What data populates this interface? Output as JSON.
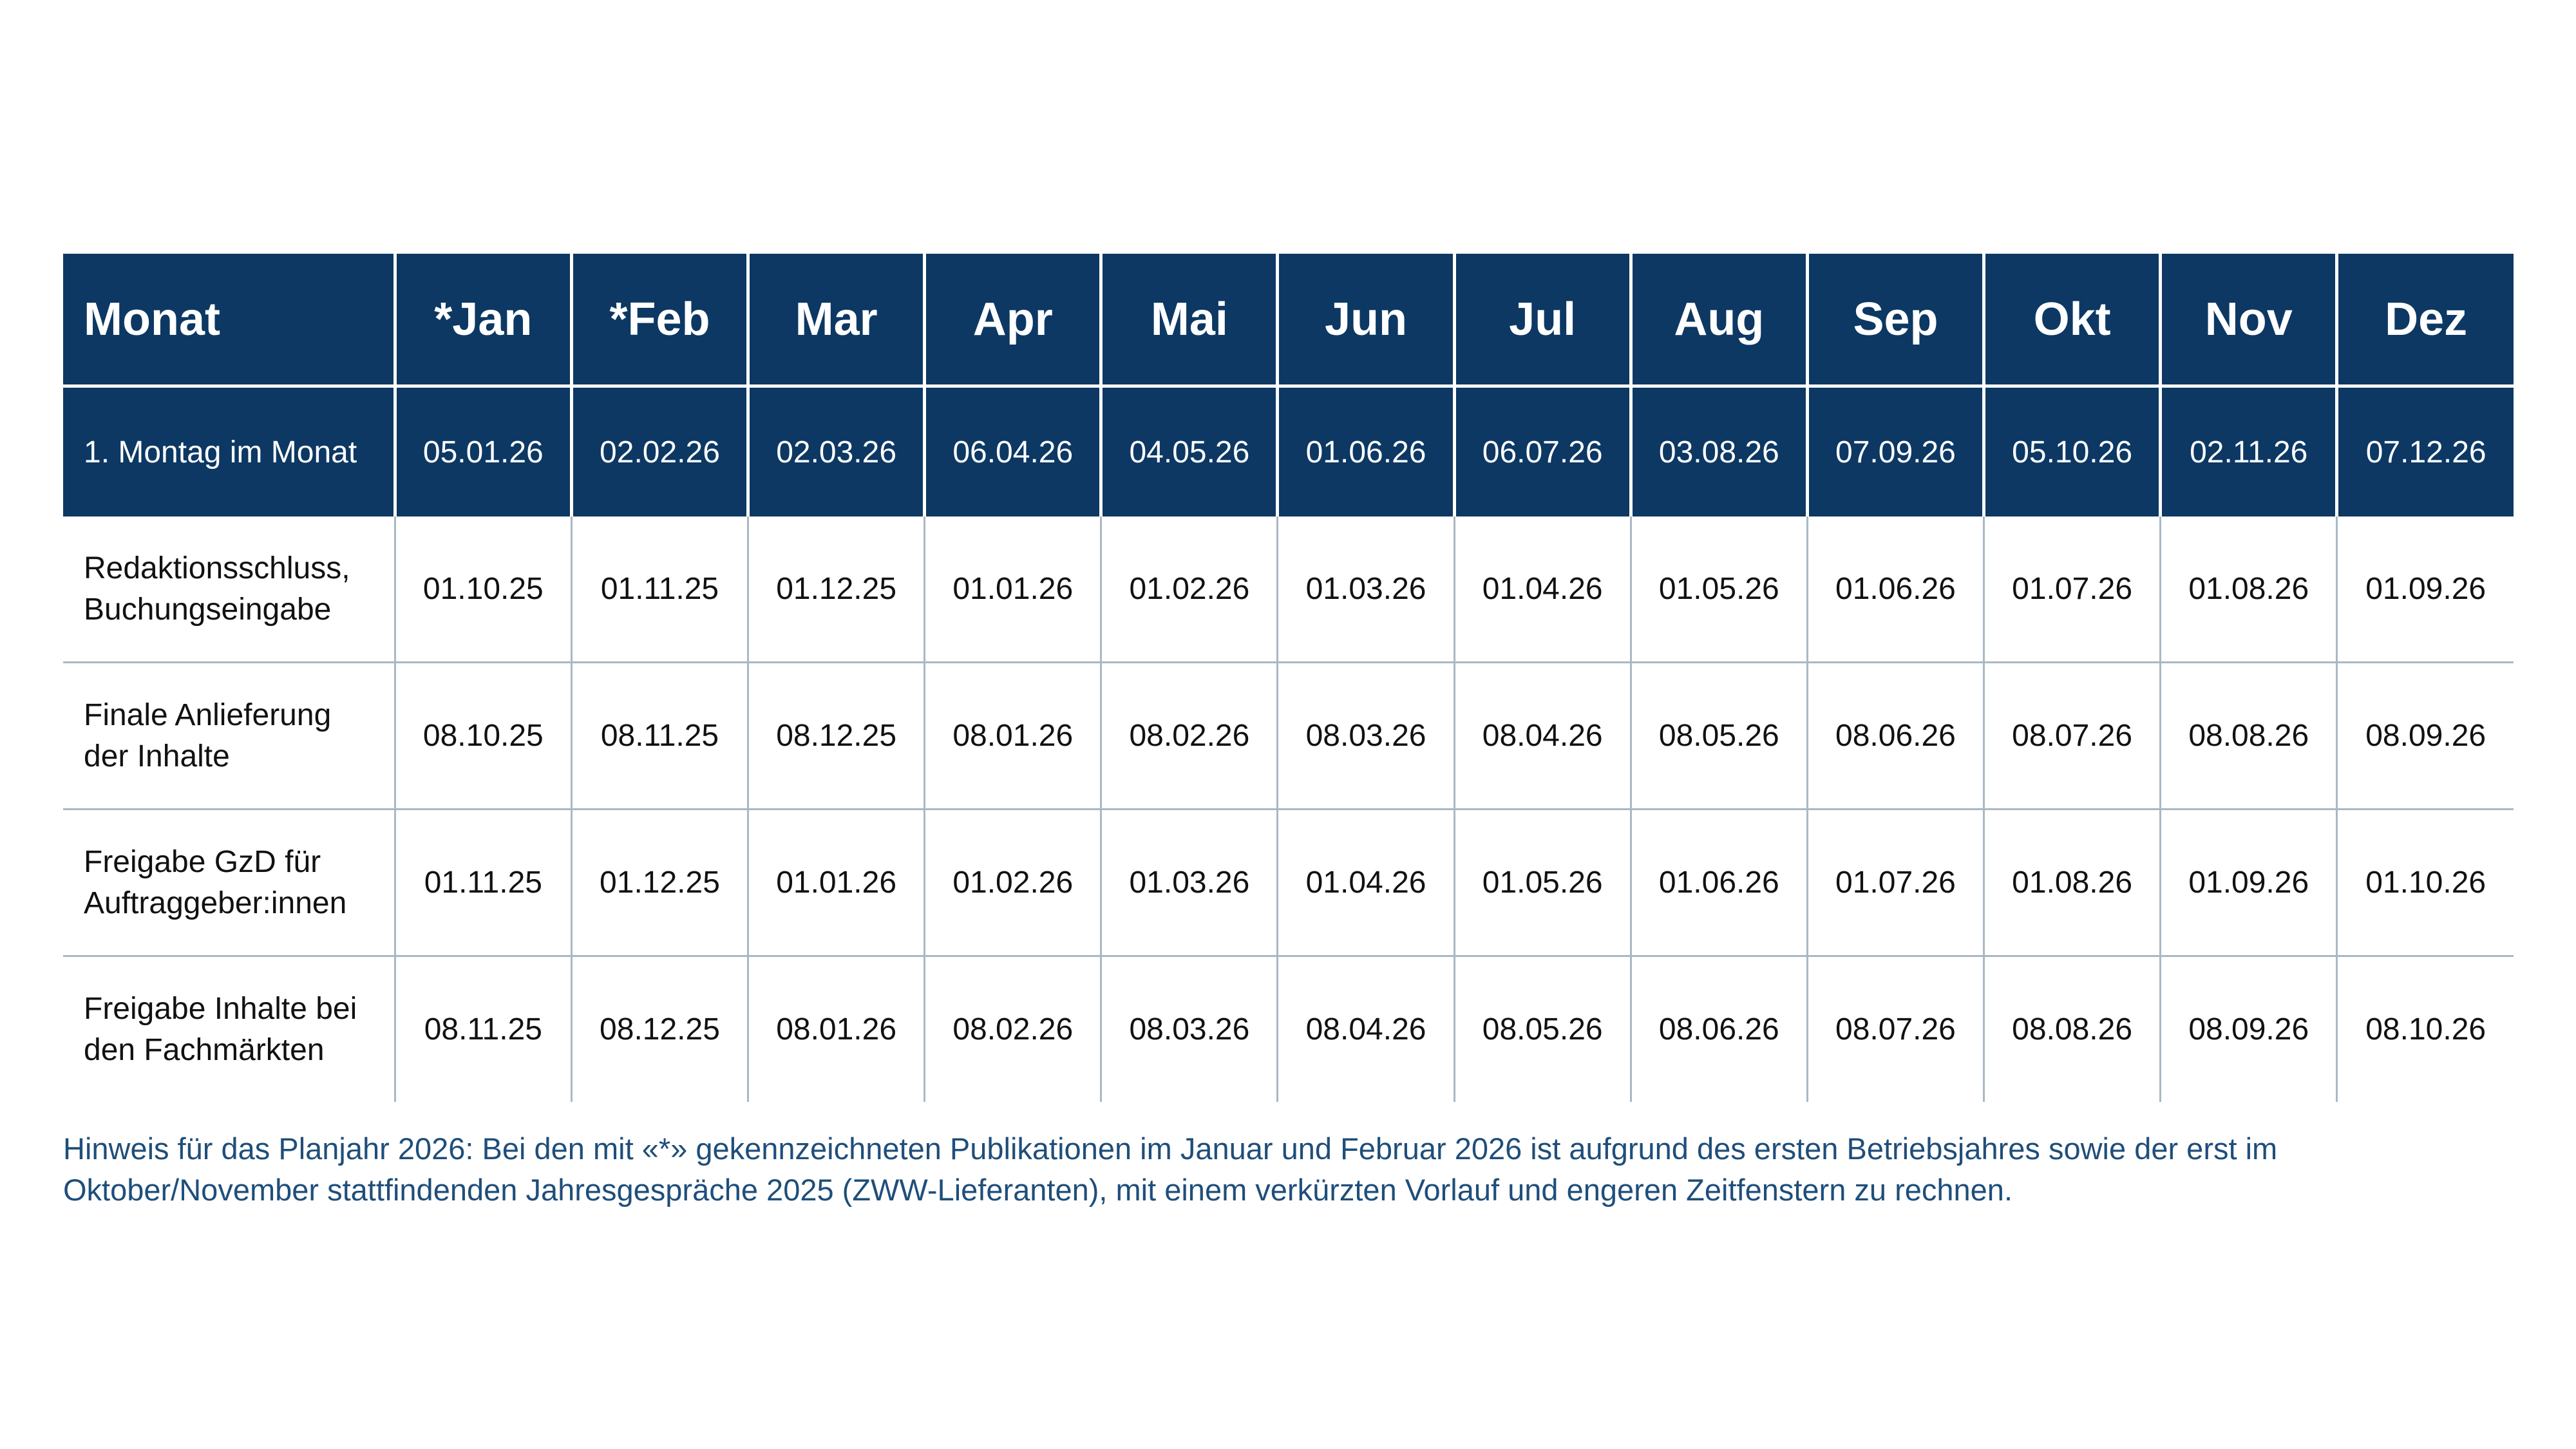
{
  "colors": {
    "header_bg": "#0c3863",
    "header_text": "#ffffff",
    "grid_line": "#a9b8c3",
    "note_text": "#1f4e7a"
  },
  "table": {
    "header": {
      "label": "Monat",
      "months": [
        "*Jan",
        "*Feb",
        "Mar",
        "Apr",
        "Mai",
        "Jun",
        "Jul",
        "Aug",
        "Sep",
        "Okt",
        "Nov",
        "Dez"
      ]
    },
    "monday_row": {
      "label": "1. Montag im Monat",
      "values": [
        "05.01.26",
        "02.02.26",
        "02.03.26",
        "06.04.26",
        "04.05.26",
        "01.06.26",
        "06.07.26",
        "03.08.26",
        "07.09.26",
        "05.10.26",
        "02.11.26",
        "07.12.26"
      ]
    },
    "rows": [
      {
        "label_line1": "Redaktionsschluss,",
        "label_line2": "Buchungseingabe",
        "values": [
          "01.10.25",
          "01.11.25",
          "01.12.25",
          "01.01.26",
          "01.02.26",
          "01.03.26",
          "01.04.26",
          "01.05.26",
          "01.06.26",
          "01.07.26",
          "01.08.26",
          "01.09.26"
        ]
      },
      {
        "label_line1": "Finale Anlieferung",
        "label_line2": "der Inhalte",
        "values": [
          "08.10.25",
          "08.11.25",
          "08.12.25",
          "08.01.26",
          "08.02.26",
          "08.03.26",
          "08.04.26",
          "08.05.26",
          "08.06.26",
          "08.07.26",
          "08.08.26",
          "08.09.26"
        ]
      },
      {
        "label_line1": "Freigabe GzD für",
        "label_line2": "Auftraggeber:innen",
        "values": [
          "01.11.25",
          "01.12.25",
          "01.01.26",
          "01.02.26",
          "01.03.26",
          "01.04.26",
          "01.05.26",
          "01.06.26",
          "01.07.26",
          "01.08.26",
          "01.09.26",
          "01.10.26"
        ]
      },
      {
        "label_line1": "Freigabe Inhalte bei",
        "label_line2": "den Fachmärkten",
        "values": [
          "08.11.25",
          "08.12.25",
          "08.01.26",
          "08.02.26",
          "08.03.26",
          "08.04.26",
          "08.05.26",
          "08.06.26",
          "08.07.26",
          "08.08.26",
          "08.09.26",
          "08.10.26"
        ]
      }
    ]
  },
  "note": {
    "line1": "Hinweis für das Planjahr 2026: Bei den mit «*» gekennzeichneten Publikationen im Januar und Februar 2026 ist aufgrund des ersten Betriebsjahres sowie der erst im",
    "line2": "Oktober/November stattfindenden Jahresgespräche 2025 (ZWW-Lieferanten), mit einem verkürzten Vorlauf und engeren Zeitfenstern zu rechnen."
  }
}
